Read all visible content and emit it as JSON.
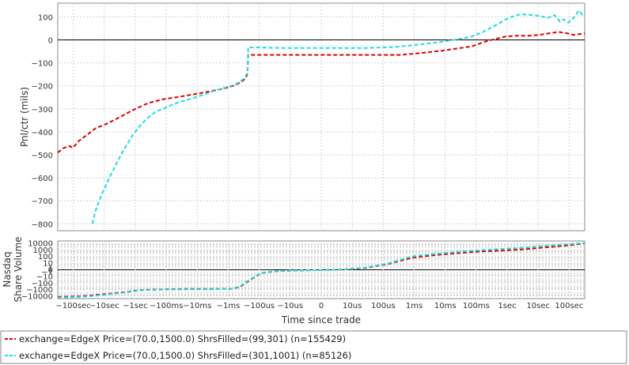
{
  "colors": {
    "series1": "#dd0000",
    "series2": "#22dddd",
    "grid": "#d4d4d4",
    "zero": "#000000",
    "frame": "#888888"
  },
  "chart_data": [
    {
      "type": "line",
      "ylabel": "Pnl/ctr (mils)",
      "ylim": [
        -830,
        160
      ],
      "yticks": [
        100,
        0,
        -100,
        -200,
        -300,
        -400,
        -500,
        -600,
        -700,
        -800
      ],
      "ytick_labels": [
        "100",
        "0",
        "−100",
        "−200",
        "−300",
        "−400",
        "−500",
        "−600",
        "−700",
        "−800"
      ],
      "xlim": [
        -3.5,
        3.5
      ],
      "grid": true,
      "series": [
        {
          "name": "exchange=EdgeX Price=(70.0,1500.0) ShrsFilled=(99,301) (n=155429)",
          "style": "dashed",
          "x": [
            -3.5,
            -3.42,
            -3.34,
            -3.3,
            -3.22,
            -3.1,
            -3.0,
            -2.85,
            -2.7,
            -2.5,
            -2.3,
            -2.1,
            -1.9,
            -1.7,
            -1.5,
            -1.3,
            -1.15,
            -1.05,
            -1.0,
            -0.98,
            -0.97,
            -0.5,
            0,
            0.6,
            1.05,
            1.3,
            1.6,
            2.0,
            2.2,
            2.45,
            2.6,
            2.75,
            2.9,
            3.05,
            3.15,
            3.25,
            3.35,
            3.5
          ],
          "y": [
            -490,
            -470,
            -462,
            -470,
            -440,
            -410,
            -385,
            -365,
            -340,
            -305,
            -275,
            -258,
            -248,
            -237,
            -225,
            -212,
            -198,
            -180,
            -165,
            -145,
            -65,
            -65,
            -65,
            -65,
            -65,
            -58,
            -47,
            -28,
            -5,
            15,
            18,
            18,
            22,
            30,
            35,
            30,
            22,
            28
          ]
        },
        {
          "name": "exchange=EdgeX Price=(70.0,1500.0) ShrsFilled=(301,1001) (n=85126)",
          "style": "dashed",
          "x": [
            -3.04,
            -3.0,
            -2.95,
            -2.9,
            -2.8,
            -2.7,
            -2.6,
            -2.5,
            -2.4,
            -2.3,
            -2.2,
            -2.1,
            -2.0,
            -1.9,
            -1.75,
            -1.6,
            -1.45,
            -1.3,
            -1.15,
            -1.05,
            -1.0,
            -0.98,
            -0.97,
            -0.95,
            -0.5,
            0,
            0.6,
            0.8,
            1.0,
            1.3,
            1.6,
            1.85,
            2.0,
            2.15,
            2.35,
            2.5,
            2.65,
            2.8,
            2.92,
            3.0,
            3.1,
            3.17,
            3.22,
            3.28,
            3.35,
            3.42,
            3.47,
            3.5
          ],
          "y": [
            -800,
            -745,
            -700,
            -660,
            -590,
            -525,
            -465,
            -412,
            -370,
            -338,
            -312,
            -300,
            -285,
            -272,
            -258,
            -242,
            -225,
            -210,
            -195,
            -175,
            -155,
            -140,
            -32,
            -32,
            -35,
            -35,
            -35,
            -33,
            -30,
            -20,
            -8,
            5,
            15,
            35,
            70,
            98,
            112,
            108,
            104,
            95,
            108,
            80,
            90,
            75,
            95,
            128,
            110,
            120
          ]
        }
      ]
    },
    {
      "type": "line",
      "ylabel": "Nasdaq Share Volume",
      "yscale": "symlog",
      "ytick_labels": [
        "10000",
        "1000",
        "100",
        "10",
        "1",
        "0",
        "−1",
        "−10",
        "−100",
        "−1000",
        "−10000"
      ],
      "xlabel": "Time since trade",
      "xscale": "symlog",
      "xticks": [
        "−100sec",
        "−10sec",
        "−1sec",
        "−100ms",
        "−10ms",
        "−1ms",
        "−100us",
        "−10us",
        "0",
        "10us",
        "100us",
        "1ms",
        "10ms",
        "100ms",
        "1sec",
        "10sec",
        "100sec"
      ],
      "grid": true,
      "series": [
        {
          "name": "exchange=EdgeX Price=(70.0,1500.0) ShrsFilled=(99,301) (n=155429)",
          "x": [
            -3.5,
            -3.2,
            -2.9,
            -2.6,
            -2.4,
            -2.1,
            -1.8,
            -1.5,
            -1.2,
            -1.08,
            -0.98,
            -0.8,
            -0.6,
            -0.3,
            0,
            0.3,
            0.6,
            0.9,
            1.2,
            1.5,
            1.8,
            2.1,
            2.4,
            2.7,
            3.0,
            3.25,
            3.5
          ],
          "y": [
            -4.1,
            -4.0,
            -3.7,
            -3.35,
            -3.05,
            -2.95,
            -2.9,
            -2.9,
            -2.88,
            -2.6,
            -1.8,
            -0.5,
            -0.2,
            -0.1,
            -0.05,
            0.05,
            0.3,
            0.9,
            1.8,
            2.2,
            2.5,
            2.75,
            2.9,
            3.1,
            3.4,
            3.65,
            4.0
          ]
        },
        {
          "name": "exchange=EdgeX Price=(70.0,1500.0) ShrsFilled=(301,1001) (n=85126)",
          "x": [
            -3.5,
            -3.2,
            -2.9,
            -2.6,
            -2.4,
            -2.1,
            -1.8,
            -1.5,
            -1.2,
            -1.08,
            -0.98,
            -0.8,
            -0.6,
            -0.3,
            0,
            0.3,
            0.6,
            0.9,
            1.2,
            1.5,
            1.8,
            2.1,
            2.4,
            2.7,
            3.0,
            3.25,
            3.5
          ],
          "y": [
            -4.2,
            -4.1,
            -3.8,
            -3.4,
            -3.1,
            -3.0,
            -2.95,
            -2.95,
            -2.9,
            -2.5,
            -1.7,
            -0.45,
            -0.2,
            -0.1,
            -0.05,
            0.05,
            0.35,
            1.0,
            2.0,
            2.4,
            2.7,
            2.95,
            3.15,
            3.35,
            3.65,
            3.85,
            4.05
          ]
        }
      ]
    }
  ]
}
